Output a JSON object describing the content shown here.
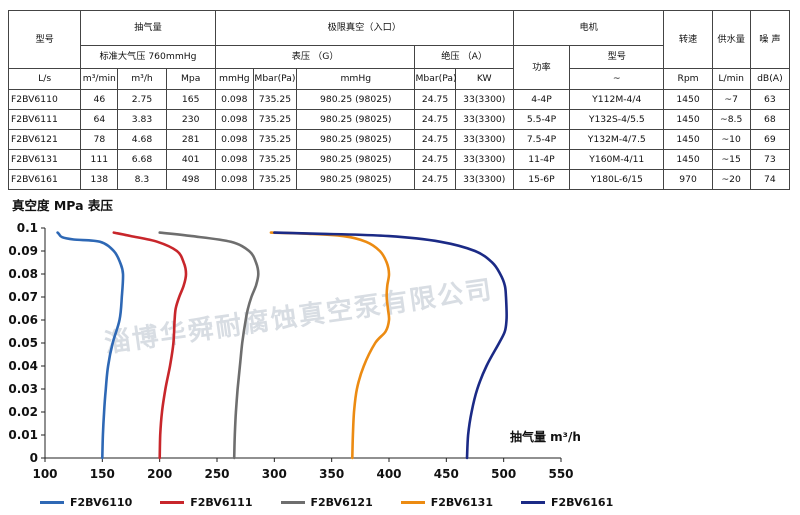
{
  "table": {
    "model_header": "型号",
    "intake_header": "抽气量",
    "vacuum_header": "极限真空（入口）",
    "motor_header": "电机",
    "speed_header": "转速",
    "water_header": "供水量",
    "noise_header": "噪 声",
    "atm_label": "标准大气压 760mmHg",
    "gauge_label": "表压 （G）",
    "abs_label": "绝压 （A）",
    "power_label": "功率",
    "motor_model_label": "型号",
    "units": [
      "L/s",
      "m³/min",
      "m³/h",
      "Mpa",
      "mmHg",
      "Mbar(Pa)",
      "mmHg",
      "Mbar(Pa)",
      "KW",
      "~",
      "Rpm",
      "L/min",
      "dB(A)"
    ],
    "rows": [
      [
        "F2BV6110",
        "46",
        "2.75",
        "165",
        "0.098",
        "735.25",
        "980.25 (98025)",
        "24.75",
        "33(3300)",
        "4-4P",
        "Y112M-4/4",
        "1450",
        "~7",
        "63"
      ],
      [
        "F2BV6111",
        "64",
        "3.83",
        "230",
        "0.098",
        "735.25",
        "980.25 (98025)",
        "24.75",
        "33(3300)",
        "5.5-4P",
        "Y132S-4/5.5",
        "1450",
        "~8.5",
        "68"
      ],
      [
        "F2BV6121",
        "78",
        "4.68",
        "281",
        "0.098",
        "735.25",
        "980.25 (98025)",
        "24.75",
        "33(3300)",
        "7.5-4P",
        "Y132M-4/7.5",
        "1450",
        "~10",
        "69"
      ],
      [
        "F2BV6131",
        "111",
        "6.68",
        "401",
        "0.098",
        "735.25",
        "980.25 (98025)",
        "24.75",
        "33(3300)",
        "11-4P",
        "Y160M-4/11",
        "1450",
        "~15",
        "73"
      ],
      [
        "F2BV6161",
        "138",
        "8.3",
        "498",
        "0.098",
        "735.25",
        "980.25 (98025)",
        "24.75",
        "33(3300)",
        "15-6P",
        "Y180L-6/15",
        "970",
        "~20",
        "74"
      ]
    ]
  },
  "watermark": "淄博华舜耐腐蚀真空泵有限公司",
  "colors": {
    "axis": "#222222",
    "text": "#111111",
    "watermark": "#d8dde3"
  },
  "chart_data": {
    "type": "line",
    "ylabel": "真空度 MPa 表压",
    "xlabel": "抽气量 m³/h",
    "xlim": [
      100,
      550
    ],
    "ylim": [
      0,
      0.1
    ],
    "xticks": [
      "100",
      "150",
      "200",
      "250",
      "300",
      "350",
      "400",
      "450",
      "500",
      "550"
    ],
    "yticks": [
      "0",
      "0.01",
      "0.02",
      "0.03",
      "0.04",
      "0.05",
      "0.06",
      "0.07",
      "0.08",
      "0.09",
      "0.1"
    ],
    "grid": false,
    "legend_position": "bottom",
    "series": [
      {
        "name": "F2BV6110",
        "color": "#2e68b5",
        "x": [
          150,
          150.5,
          151.5,
          153,
          155,
          159,
          165,
          167,
          168,
          165.5,
          160,
          148,
          125,
          115,
          112,
          111
        ],
        "y": [
          0,
          0.01,
          0.02,
          0.03,
          0.04,
          0.05,
          0.06,
          0.07,
          0.08,
          0.085,
          0.09,
          0.094,
          0.095,
          0.096,
          0.0975,
          0.098
        ]
      },
      {
        "name": "F2BV6111",
        "color": "#c8262b",
        "x": [
          200,
          200.5,
          202,
          205,
          209,
          212,
          213,
          214,
          217,
          221,
          223,
          221,
          215,
          198,
          175,
          160
        ],
        "y": [
          0,
          0.01,
          0.02,
          0.03,
          0.04,
          0.05,
          0.06,
          0.065,
          0.07,
          0.075,
          0.08,
          0.085,
          0.09,
          0.094,
          0.0965,
          0.098
        ]
      },
      {
        "name": "F2BV6121",
        "color": "#6e6e6e",
        "x": [
          265,
          265.5,
          266.5,
          268,
          270,
          272,
          275,
          277,
          280,
          284,
          286,
          284,
          278,
          262,
          228,
          200
        ],
        "y": [
          0,
          0.01,
          0.02,
          0.03,
          0.04,
          0.05,
          0.06,
          0.065,
          0.07,
          0.075,
          0.08,
          0.085,
          0.09,
          0.094,
          0.0965,
          0.098
        ]
      },
      {
        "name": "F2BV6131",
        "color": "#ec8b12",
        "x": [
          368,
          368.5,
          369.5,
          372,
          378,
          388,
          397,
          400,
          399,
          398,
          398.5,
          400,
          398,
          392,
          380,
          360,
          330,
          297
        ],
        "y": [
          0,
          0.01,
          0.02,
          0.03,
          0.04,
          0.05,
          0.055,
          0.06,
          0.065,
          0.07,
          0.075,
          0.08,
          0.085,
          0.09,
          0.094,
          0.0965,
          0.0975,
          0.098
        ]
      },
      {
        "name": "F2BV6161",
        "color": "#1b2a86",
        "x": [
          468,
          469,
          472,
          477,
          485,
          496,
          501,
          502.5,
          502.5,
          502,
          501,
          497,
          490,
          475,
          445,
          400,
          340,
          300
        ],
        "y": [
          0,
          0.01,
          0.02,
          0.03,
          0.04,
          0.05,
          0.055,
          0.06,
          0.065,
          0.07,
          0.075,
          0.08,
          0.085,
          0.09,
          0.094,
          0.0965,
          0.0975,
          0.098
        ]
      }
    ]
  }
}
